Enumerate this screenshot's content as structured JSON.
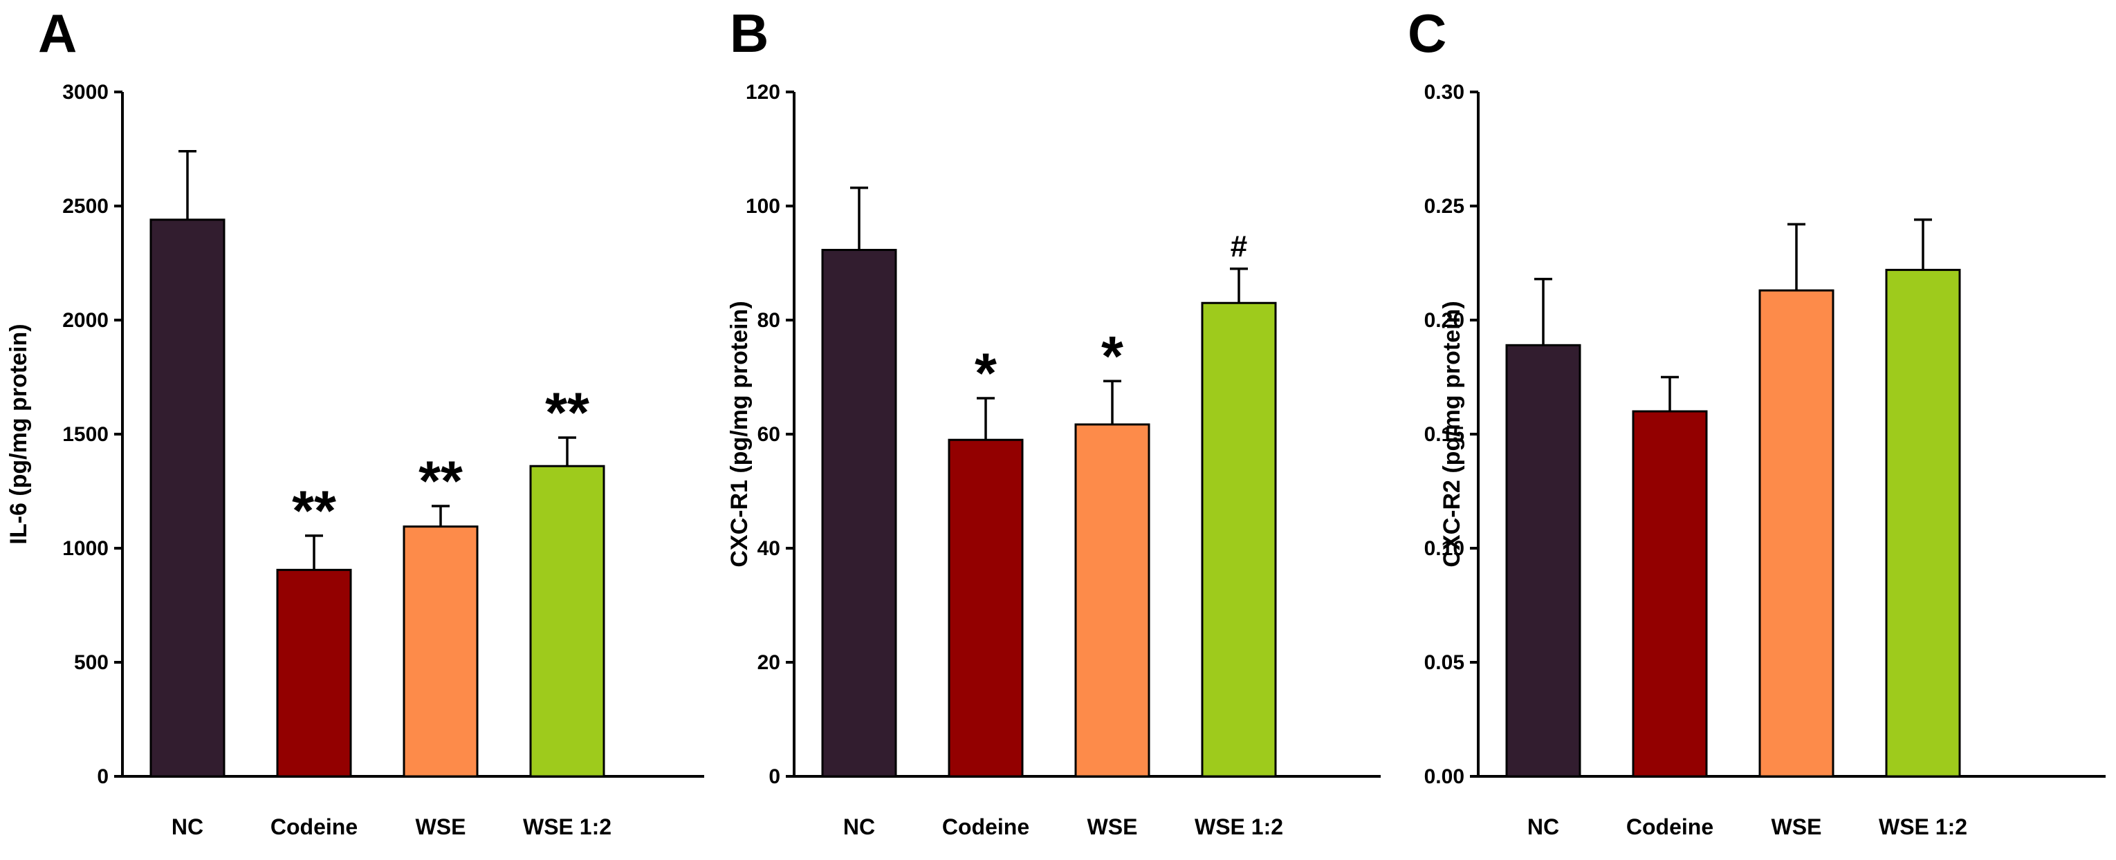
{
  "chart_data": [
    {
      "type": "bar",
      "panel": "A",
      "categories": [
        "NC",
        "Codeine",
        "WSE",
        "WSE 1:2"
      ],
      "values": [
        2440,
        905,
        1095,
        1360
      ],
      "errors": [
        300,
        150,
        90,
        125
      ],
      "annotations": [
        "",
        "**",
        "**",
        "**"
      ],
      "ylabel": "IL-6 (pg/mg protein)",
      "ylim": [
        0,
        3000
      ],
      "yticks": [
        "0",
        "500",
        "1000",
        "1500",
        "2000",
        "2500",
        "3000"
      ]
    },
    {
      "type": "bar",
      "panel": "B",
      "categories": [
        "NC",
        "Codeine",
        "WSE",
        "WSE 1:2"
      ],
      "values": [
        92.3,
        59,
        61.7,
        83
      ],
      "errors": [
        10.9,
        7.3,
        7.6,
        6
      ],
      "annotations": [
        "",
        "*",
        "*",
        "#"
      ],
      "ylabel": "CXC-R1 (pg/mg protein)",
      "ylim": [
        0,
        120
      ],
      "yticks": [
        "0",
        "20",
        "40",
        "60",
        "80",
        "100",
        "120"
      ]
    },
    {
      "type": "bar",
      "panel": "C",
      "categories": [
        "NC",
        "Codeine",
        "WSE",
        "WSE 1:2"
      ],
      "values": [
        0.189,
        0.16,
        0.213,
        0.222
      ],
      "errors": [
        0.029,
        0.015,
        0.029,
        0.022
      ],
      "annotations": [
        "",
        "",
        "",
        ""
      ],
      "ylabel": "CXC-R2 (pg/mg protein)",
      "ylim": [
        0,
        0.3
      ],
      "yticks": [
        "0.00",
        "0.05",
        "0.10",
        "0.15",
        "0.20",
        "0.25",
        "0.30"
      ]
    }
  ],
  "colors": [
    "#321d2f",
    "#930000",
    "#fd8b4a",
    "#9ecb1c"
  ]
}
